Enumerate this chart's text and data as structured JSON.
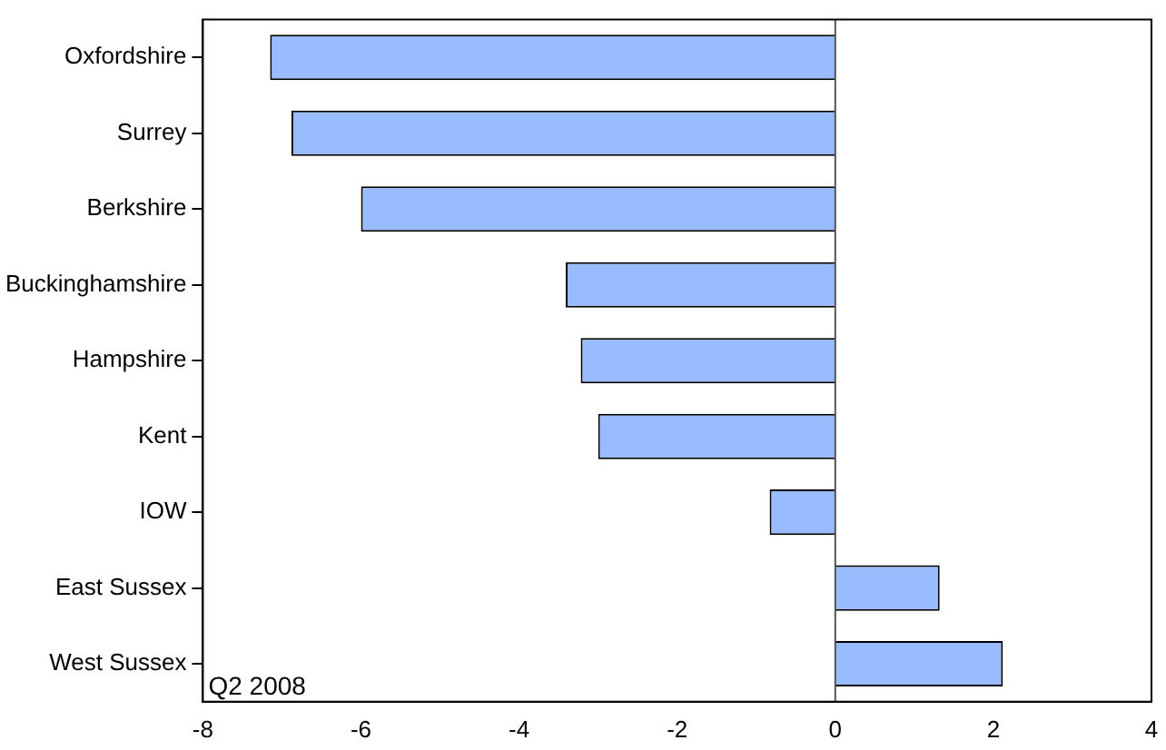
{
  "chart_data": {
    "type": "bar",
    "orientation": "horizontal",
    "categories": [
      "Oxfordshire",
      "Surrey",
      "Berkshire",
      "Buckinghamshire",
      "Hampshire",
      "Kent",
      "IOW",
      "East Sussex",
      "West Sussex"
    ],
    "values": [
      -7.15,
      -6.88,
      -6.0,
      -3.41,
      -3.22,
      -3.0,
      -0.83,
      1.32,
      2.12
    ],
    "color": "#99bbff",
    "xlim": [
      -8,
      4
    ],
    "xticks": [
      -8,
      -6,
      -4,
      -2,
      0,
      2,
      4
    ],
    "grid": false,
    "legend": false,
    "ref_lines": [
      {
        "axis": "x",
        "value": 0,
        "color": "#555555"
      }
    ],
    "annotations": [
      "Q2 2008"
    ]
  }
}
